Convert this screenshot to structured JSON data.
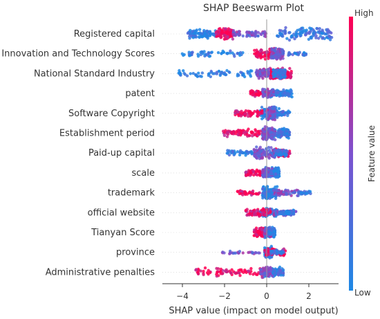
{
  "chart_data": {
    "type": "scatter",
    "subtype": "shap-beeswarm",
    "title": "SHAP Beeswarm Plot",
    "xlabel": "SHAP value (impact on model output)",
    "xlim": [
      -4.4,
      3.5
    ],
    "xticks": [
      -4,
      -2,
      0,
      2
    ],
    "grid": false,
    "zero_line": true,
    "colorbar": {
      "title": "Feature value",
      "high_label": "High",
      "low_label": "Low",
      "low_color": "#1e88e5",
      "high_color": "#ff0052"
    },
    "features": [
      {
        "name": "Registered capital",
        "range": [
          -3.8,
          3.1
        ],
        "lowRegion": [
          -3.8,
          -2.4,
          0.6
        ],
        "highRegion": [
          -2.4,
          -1.6,
          0.7
        ],
        "midRegion": [
          -1.6,
          0,
          0.4
        ],
        "rightRegion": [
          0.4,
          3.1,
          0.9
        ]
      },
      {
        "name": "Innovation and Technology Scores",
        "range": [
          -4.1,
          1.9
        ],
        "lowRegion": [
          -4.1,
          -1.0,
          0.3
        ],
        "highRegion": [
          -0.6,
          0.6,
          0.7
        ],
        "midRegion": [
          0.2,
          0.8,
          0.8
        ],
        "rightRegion": [
          1.0,
          1.9,
          0.1
        ]
      },
      {
        "name": "National Standard Industry",
        "range": [
          -4.2,
          1.2
        ],
        "lowRegion": [
          -4.2,
          -0.6,
          0.4
        ],
        "highRegion": [
          0.1,
          1.2,
          0.8
        ],
        "midRegion": [
          -0.5,
          0.1,
          0.6
        ],
        "rightRegion": [
          0.3,
          0.9,
          0.7
        ]
      },
      {
        "name": "patent",
        "range": [
          -0.8,
          1.2
        ],
        "lowRegion": [
          0.0,
          1.2,
          0.5
        ],
        "highRegion": [
          -0.8,
          0.2,
          0.3
        ],
        "midRegion": [
          -0.2,
          0.4,
          0.5
        ],
        "rightRegion": [
          0.4,
          1.1,
          0.2
        ]
      },
      {
        "name": "Software Copyright",
        "range": [
          -1.5,
          1.1
        ],
        "lowRegion": [
          -0.3,
          0.6,
          0.8
        ],
        "highRegion": [
          -1.5,
          -0.2,
          0.4
        ],
        "midRegion": [
          0.0,
          0.4,
          0.9
        ],
        "rightRegion": [
          0.5,
          1.1,
          0.2
        ]
      },
      {
        "name": "Establishment period",
        "range": [
          -2.1,
          1.1
        ],
        "lowRegion": [
          -0.2,
          1.1,
          0.7
        ],
        "highRegion": [
          -2.1,
          -0.1,
          0.5
        ],
        "midRegion": [
          -0.2,
          0.4,
          0.9
        ],
        "rightRegion": [
          0.5,
          1.1,
          0.3
        ]
      },
      {
        "name": "Paid-up capital",
        "range": [
          -1.9,
          1.1
        ],
        "lowRegion": [
          -1.9,
          -0.6,
          0.2
        ],
        "highRegion": [
          0.3,
          1.1,
          0.5
        ],
        "midRegion": [
          -0.6,
          0.4,
          0.8
        ],
        "rightRegion": [
          0.4,
          1.0,
          0.4
        ]
      },
      {
        "name": "scale",
        "range": [
          -1.0,
          0.6
        ],
        "lowRegion": [
          -0.2,
          0.6,
          0.8
        ],
        "highRegion": [
          -1.0,
          -0.2,
          0.3
        ],
        "midRegion": [
          -0.2,
          0.3,
          0.7
        ],
        "rightRegion": [
          0.2,
          0.6,
          0.2
        ]
      },
      {
        "name": "trademark",
        "range": [
          -1.4,
          2.1
        ],
        "lowRegion": [
          -0.2,
          0.5,
          0.9
        ],
        "highRegion": [
          -1.4,
          -0.3,
          0.2
        ],
        "midRegion": [
          0.3,
          1.5,
          0.3
        ],
        "rightRegion": [
          1.5,
          2.1,
          0.05
        ]
      },
      {
        "name": "official website",
        "range": [
          -1.0,
          1.4
        ],
        "lowRegion": [
          -0.4,
          0.5,
          0.6
        ],
        "highRegion": [
          -1.0,
          0.2,
          0.5
        ],
        "midRegion": [
          0.3,
          1.4,
          0.3
        ],
        "rightRegion": [
          0.6,
          1.3,
          0.2
        ]
      },
      {
        "name": "Tianyan Score",
        "range": [
          -0.6,
          0.4
        ],
        "lowRegion": [
          -0.1,
          0.4,
          0.7
        ],
        "highRegion": [
          -0.6,
          -0.1,
          0.6
        ],
        "midRegion": [
          -0.1,
          0.2,
          0.5
        ],
        "rightRegion": [
          0.1,
          0.3,
          0.2
        ]
      },
      {
        "name": "province",
        "range": [
          -2.1,
          0.9
        ],
        "lowRegion": [
          -0.1,
          0.3,
          0.8
        ],
        "highRegion": [
          -0.1,
          0.9,
          0.4
        ],
        "midRegion": [
          -2.1,
          -0.3,
          0.05
        ],
        "rightRegion": [
          0.2,
          0.8,
          0.2
        ]
      },
      {
        "name": "Administrative penalties",
        "range": [
          -3.4,
          0.8
        ],
        "lowRegion": [
          -0.1,
          0.8,
          0.7
        ],
        "highRegion": [
          -3.4,
          -0.2,
          0.5
        ],
        "midRegion": [
          -0.3,
          0.3,
          0.7
        ],
        "rightRegion": [
          0.3,
          0.8,
          0.2
        ]
      }
    ]
  }
}
